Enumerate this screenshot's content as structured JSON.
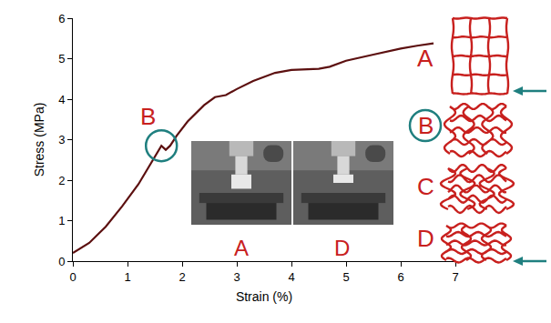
{
  "chart_data": {
    "type": "line",
    "x_label": "Strain (%)",
    "y_label": "Stress (MPa)",
    "x": [
      0,
      0.3,
      0.6,
      0.9,
      1.2,
      1.4,
      1.55,
      1.62,
      1.7,
      1.78,
      1.9,
      2.1,
      2.4,
      2.6,
      2.8,
      3.0,
      3.3,
      3.7,
      4.0,
      4.5,
      4.7,
      5.0,
      5.5,
      6.0,
      6.3,
      6.6
    ],
    "values": [
      0.2,
      0.45,
      0.85,
      1.35,
      1.9,
      2.35,
      2.7,
      2.85,
      2.75,
      2.85,
      3.1,
      3.45,
      3.85,
      4.05,
      4.1,
      4.25,
      4.45,
      4.65,
      4.72,
      4.75,
      4.8,
      4.95,
      5.1,
      5.25,
      5.32,
      5.38
    ],
    "color": "#5c1010",
    "xlim": [
      0,
      7
    ],
    "ylim": [
      0,
      6
    ],
    "xticks": [
      0,
      1,
      2,
      3,
      4,
      5,
      6,
      7
    ],
    "yticks": [
      0,
      1,
      2,
      3,
      4,
      5,
      6
    ],
    "grid": false,
    "annotations": {
      "curve_point": "B",
      "photos": [
        "A",
        "D"
      ],
      "stages": [
        "A",
        "B",
        "C",
        "D"
      ]
    }
  }
}
